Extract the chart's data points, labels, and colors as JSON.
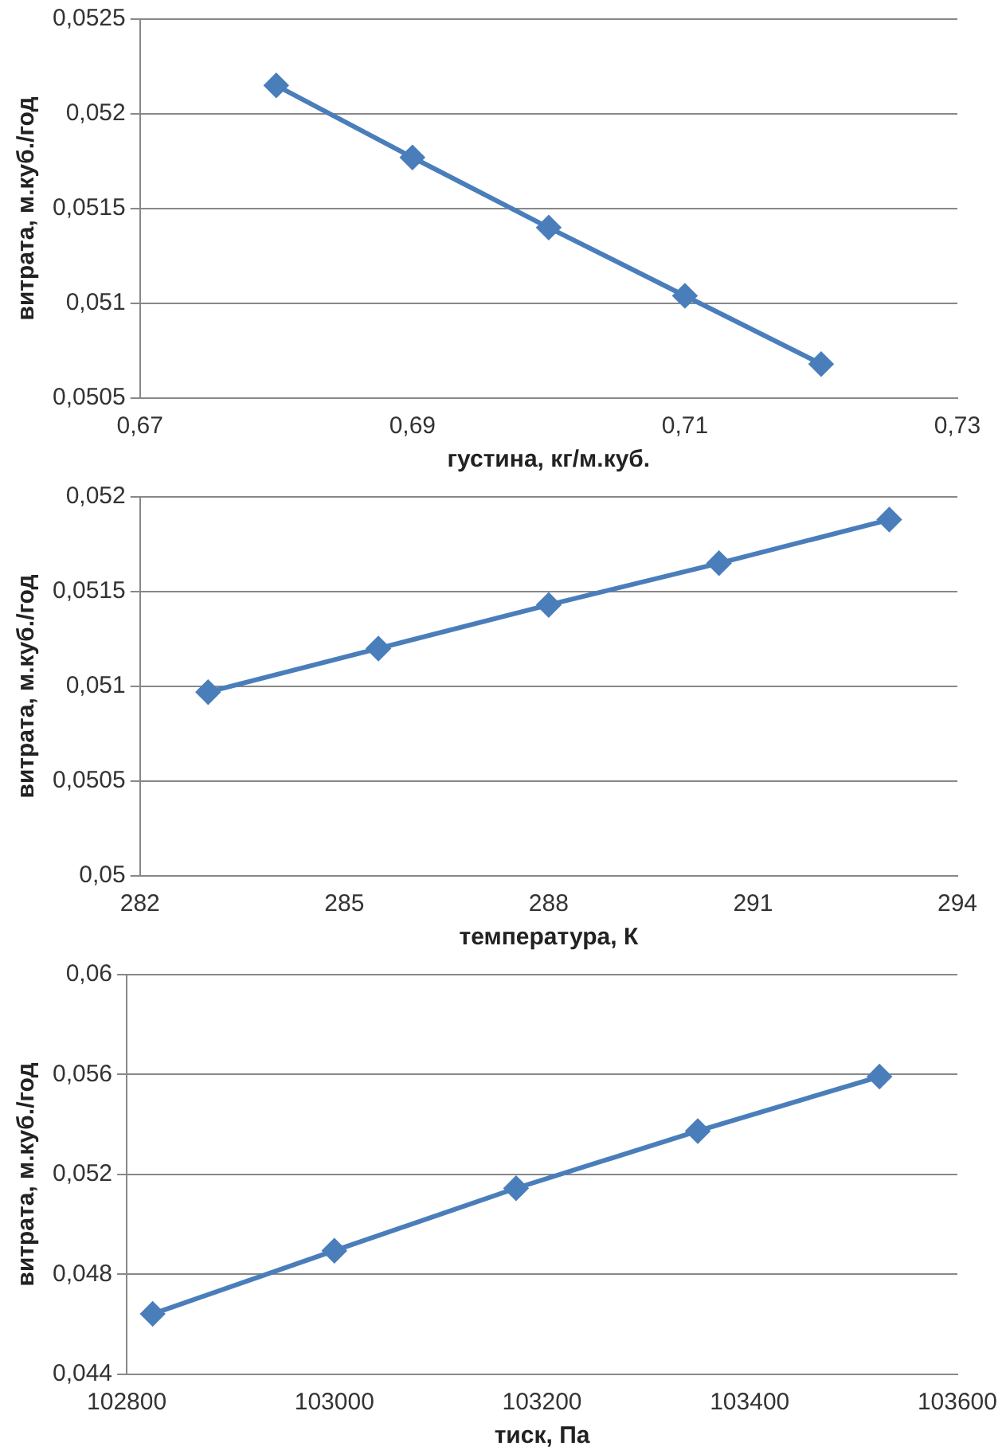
{
  "chart_data": [
    {
      "type": "line",
      "xlabel": "густина, кг/м.куб.",
      "ylabel": "витрата, м.куб./год",
      "x": [
        0.68,
        0.69,
        0.7,
        0.71,
        0.72
      ],
      "series": [
        {
          "color": "#4a7ebb",
          "values": [
            0.05215,
            0.05177,
            0.0514,
            0.05104,
            0.05068
          ]
        }
      ],
      "xlim": [
        0.67,
        0.73
      ],
      "xticks": [
        {
          "value": 0.67,
          "label": "0,67"
        },
        {
          "value": 0.69,
          "label": "0,69"
        },
        {
          "value": 0.71,
          "label": "0,71"
        },
        {
          "value": 0.73,
          "label": "0,73"
        }
      ],
      "ylim": [
        0.0505,
        0.0525
      ],
      "yticks": [
        {
          "value": 0.0505,
          "label": "0,0505"
        },
        {
          "value": 0.051,
          "label": "0,051"
        },
        {
          "value": 0.0515,
          "label": "0,0515"
        },
        {
          "value": 0.052,
          "label": "0,052"
        },
        {
          "value": 0.0525,
          "label": "0,0525"
        }
      ],
      "grid": "y",
      "marker": "diamond",
      "line_style": "solid"
    },
    {
      "type": "line",
      "xlabel": "температура, К",
      "ylabel": "витрата, м.куб./год",
      "x": [
        283,
        285.5,
        288,
        290.5,
        293
      ],
      "series": [
        {
          "color": "#4a7ebb",
          "values": [
            0.05097,
            0.0512,
            0.05143,
            0.05165,
            0.05188
          ]
        }
      ],
      "xlim": [
        282,
        294
      ],
      "xticks": [
        282,
        285,
        288,
        291,
        294
      ],
      "ylim": [
        0.05,
        0.052
      ],
      "yticks": [
        {
          "value": 0.05,
          "label": "0,05"
        },
        {
          "value": 0.0505,
          "label": "0,0505"
        },
        {
          "value": 0.051,
          "label": "0,051"
        },
        {
          "value": 0.0515,
          "label": "0,0515"
        },
        {
          "value": 0.052,
          "label": "0,052"
        }
      ],
      "grid": "y",
      "marker": "diamond",
      "line_style": "solid"
    },
    {
      "type": "line",
      "xlabel": "тиск, Па",
      "ylabel": "витрата, м.куб./год",
      "x": [
        102825,
        103000,
        103175,
        103350,
        103525
      ],
      "series": [
        {
          "color": "#4a7ebb",
          "values": [
            0.04642,
            0.04895,
            0.05145,
            0.05374,
            0.05592
          ]
        }
      ],
      "xlim": [
        102800,
        103600
      ],
      "xticks": [
        102800,
        103000,
        103200,
        103400,
        103600
      ],
      "ylim": [
        0.044,
        0.06
      ],
      "yticks": [
        {
          "value": 0.044,
          "label": "0,044"
        },
        {
          "value": 0.048,
          "label": "0,048"
        },
        {
          "value": 0.052,
          "label": "0,052"
        },
        {
          "value": 0.056,
          "label": "0,056"
        },
        {
          "value": 0.06,
          "label": "0,06"
        }
      ],
      "grid": "y",
      "marker": "diamond",
      "line_style": "solid"
    }
  ]
}
